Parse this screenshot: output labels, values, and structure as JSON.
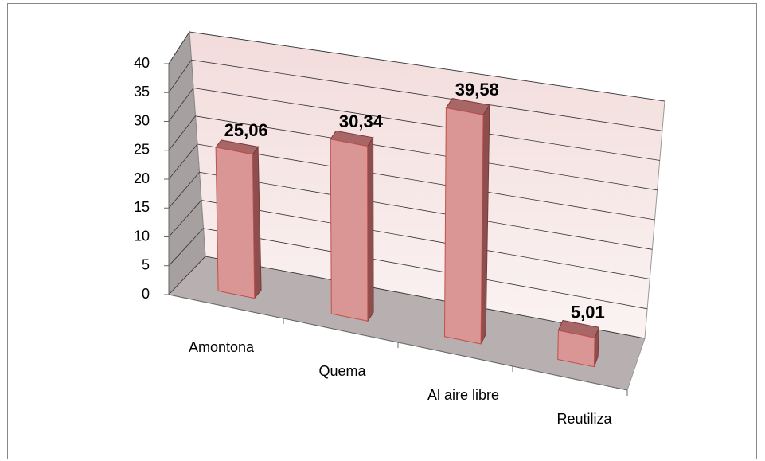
{
  "chart_data": {
    "type": "bar3d",
    "categories": [
      "Amontona",
      "Quema",
      "Al aire libre",
      "Reutiliza"
    ],
    "values": [
      25.06,
      30.34,
      39.58,
      5.01
    ],
    "value_labels": [
      "25,06",
      "30,34",
      "39,58",
      "5,01"
    ],
    "color": "#d99694",
    "ylim": [
      0,
      40
    ],
    "yticks": [
      0,
      5,
      10,
      15,
      20,
      25,
      30,
      35,
      40
    ],
    "grid": true
  }
}
